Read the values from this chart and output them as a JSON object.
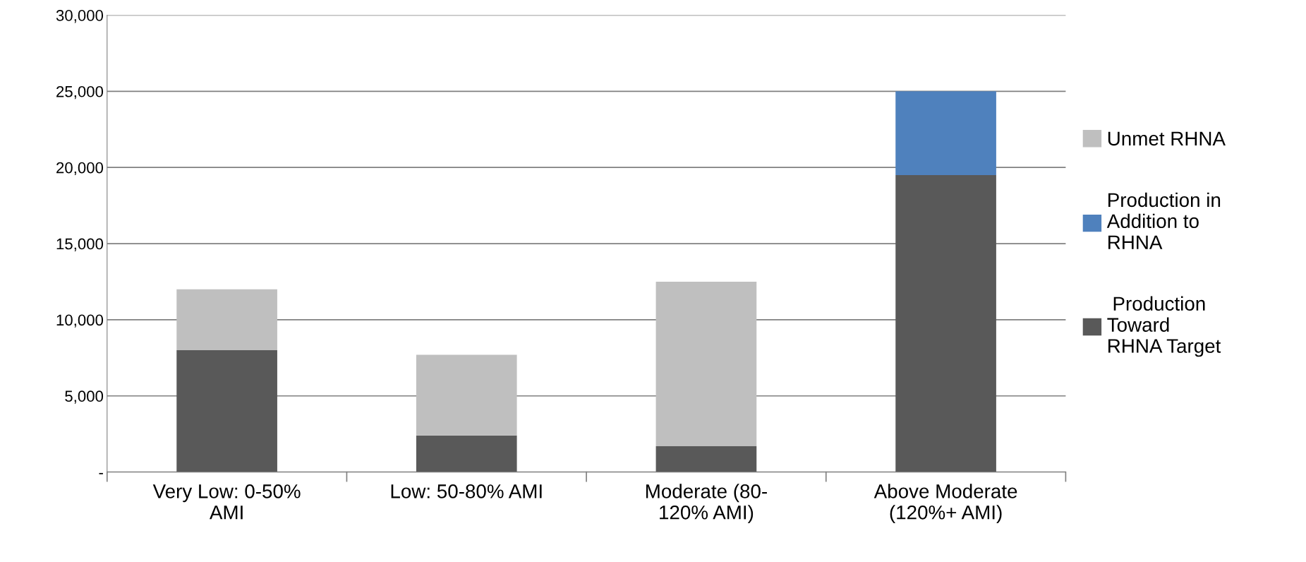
{
  "chart_data": {
    "type": "bar",
    "stacked": true,
    "categories": [
      "Very Low: 0-50%\nAMI",
      "Low: 50-80% AMI",
      "Moderate (80-\n120% AMI)",
      "Above Moderate\n(120%+ AMI)"
    ],
    "series": [
      {
        "name": " Production\nToward\nRHNA Target",
        "color": "#595959",
        "values": [
          8000,
          2400,
          1700,
          19500
        ]
      },
      {
        "name": "Production in\nAddition to\nRHNA",
        "color": "#4f81bd",
        "values": [
          0,
          0,
          0,
          5500
        ]
      },
      {
        "name": "Unmet RHNA",
        "color": "#bfbfbf",
        "values": [
          4000,
          5300,
          10800,
          0
        ]
      }
    ],
    "ylim": [
      0,
      30000
    ],
    "yticks": [
      {
        "value": 0,
        "label": "-"
      },
      {
        "value": 5000,
        "label": "5,000"
      },
      {
        "value": 10000,
        "label": "10,000"
      },
      {
        "value": 15000,
        "label": "15,000"
      },
      {
        "value": 20000,
        "label": "20,000"
      },
      {
        "value": 25000,
        "label": "25,000"
      },
      {
        "value": 30000,
        "label": "30,000"
      }
    ],
    "grid": "y",
    "legend": "right"
  }
}
